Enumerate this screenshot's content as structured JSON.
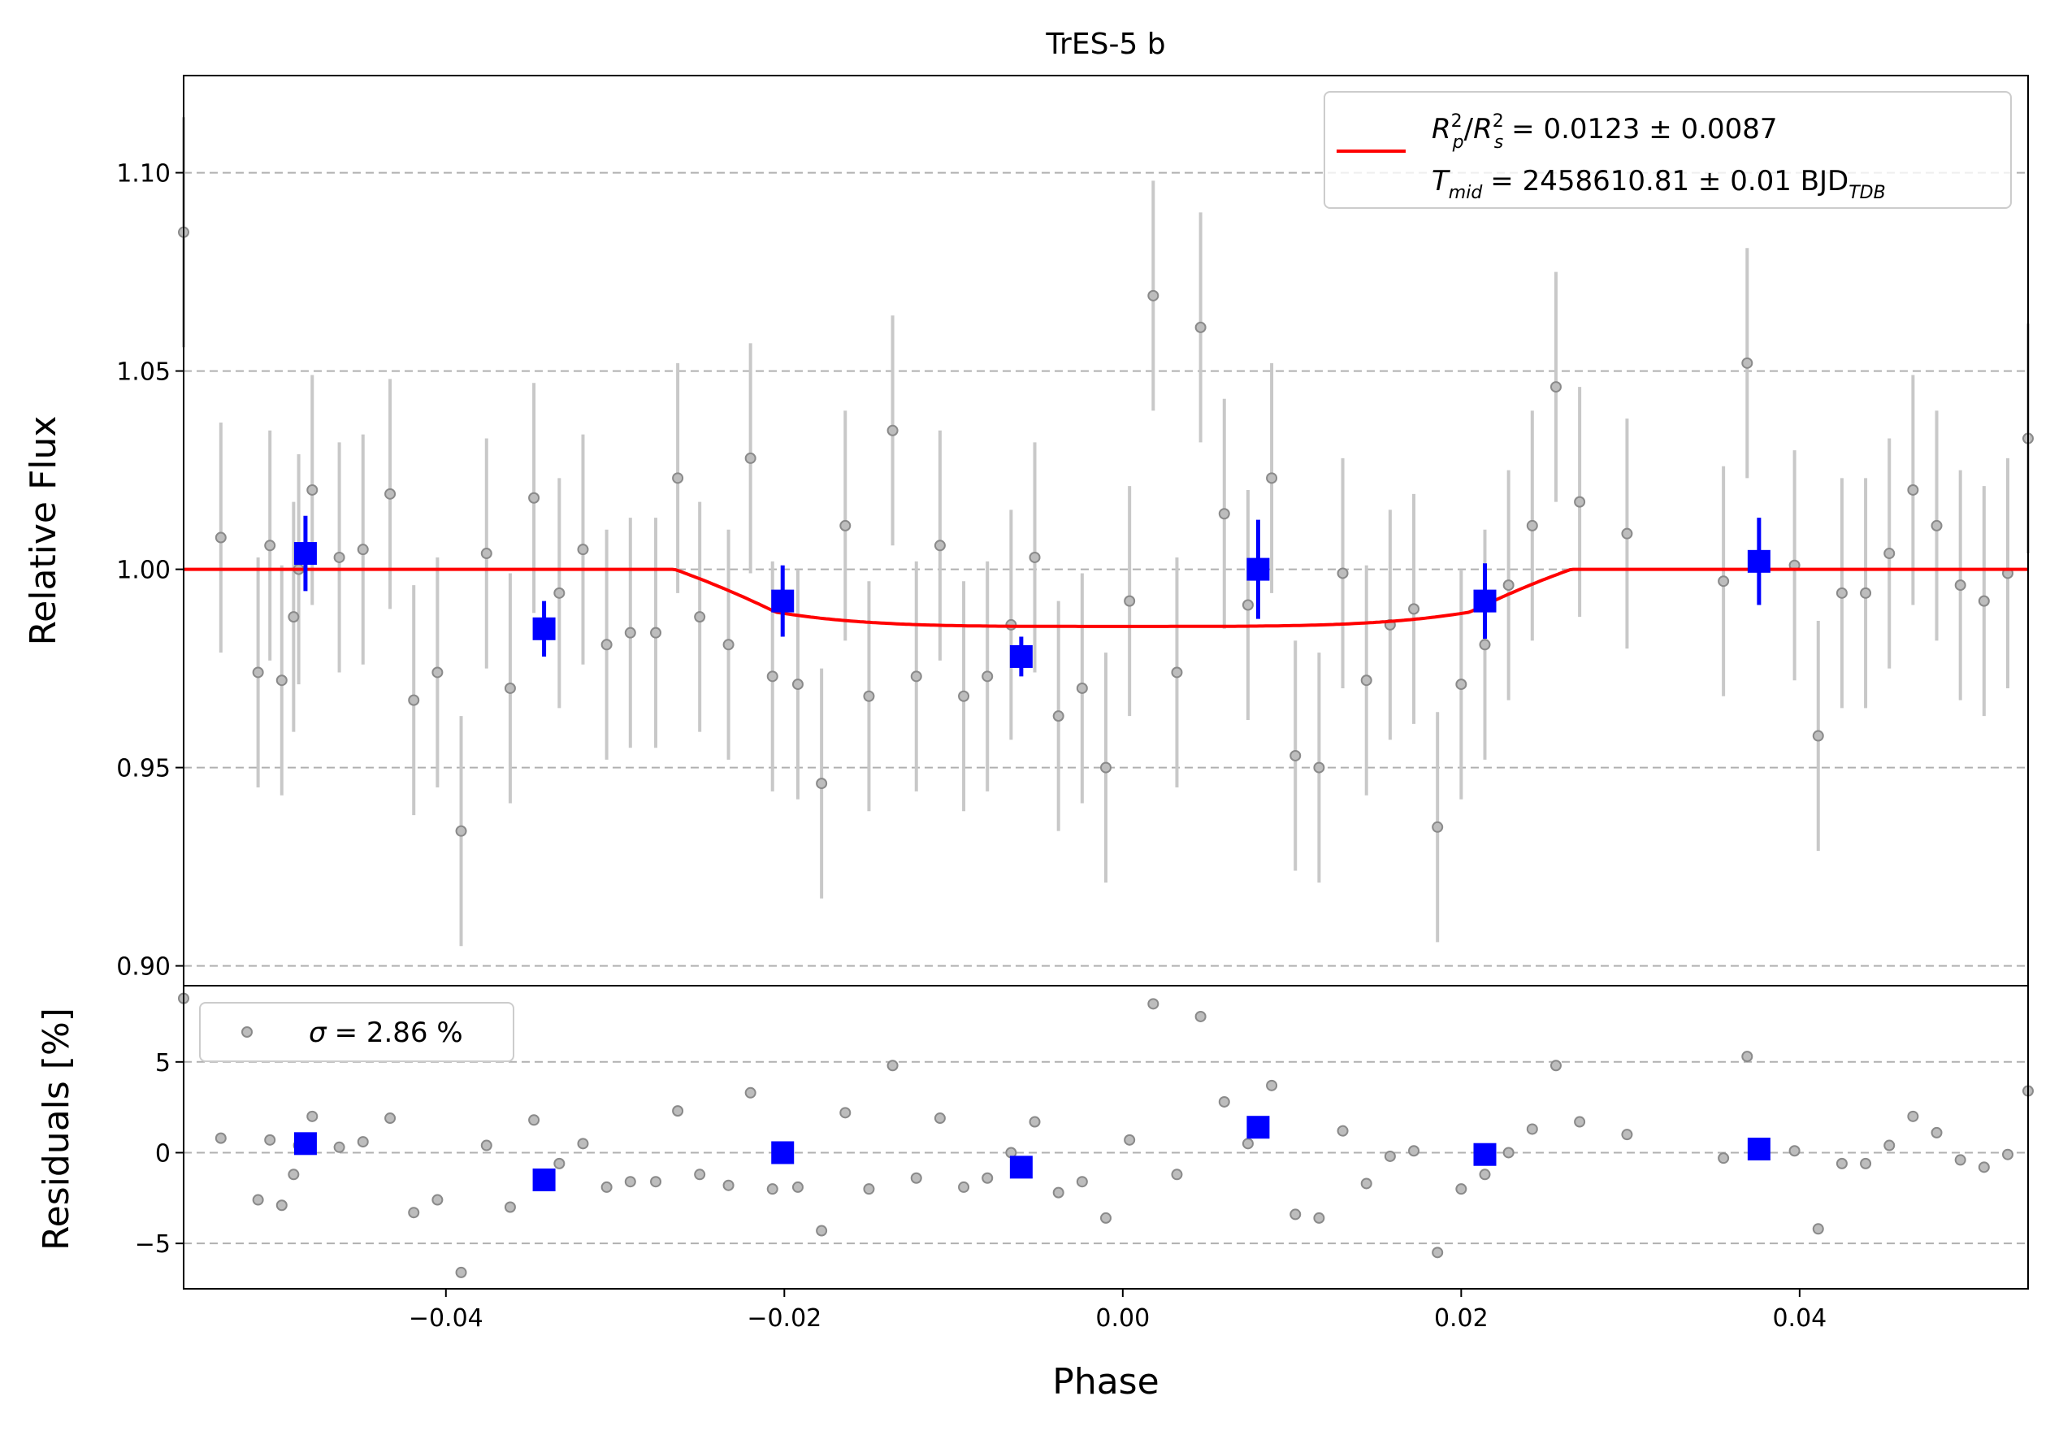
{
  "chart_data": [
    {
      "type": "scatter",
      "title": "TrES-5 b",
      "xlabel": "",
      "ylabel": "Relative Flux",
      "xlim": [
        -0.0555,
        0.0535
      ],
      "ylim": [
        0.895,
        1.1245
      ],
      "yticks": [
        0.9,
        0.95,
        1.0,
        1.05,
        1.1
      ],
      "ytick_labels": [
        "0.90",
        "0.95",
        "1.00",
        "1.05",
        "1.10"
      ],
      "grid": "horizontal dashed",
      "legend": {
        "placement": "top-right",
        "line1_prefix": "= 0.0123 ± 0.0087",
        "line2_value": "= 2458610.81 ± 0.01 BJD",
        "line2_sub": "TDB",
        "symbols": {
          "R": "R",
          "p": "p",
          "s": "s",
          "sq": "2",
          "T": "T",
          "mid": "mid"
        }
      },
      "colors": {
        "data": "#808080",
        "errorbar": "#c8c8c8",
        "binned": "#0000ff",
        "model": "#ff0000"
      },
      "transit_model": {
        "baseline": 1.0,
        "depth_at_center": 0.9856,
        "t_ingress_start": -0.0265,
        "t_ingress_end": -0.0205,
        "t_egress_start": 0.0205,
        "t_egress_end": 0.0265
      },
      "data_points": {
        "x": [
          -0.0555,
          -0.0533,
          -0.0511,
          -0.0504,
          -0.0497,
          -0.049,
          -0.0487,
          -0.0479,
          -0.0463,
          -0.0449,
          -0.0433,
          -0.0419,
          -0.0405,
          -0.0391,
          -0.0376,
          -0.0362,
          -0.0348,
          -0.0333,
          -0.0319,
          -0.0305,
          -0.0291,
          -0.0276,
          -0.0263,
          -0.025,
          -0.0233,
          -0.022,
          -0.0207,
          -0.0192,
          -0.0178,
          -0.0164,
          -0.015,
          -0.0136,
          -0.0122,
          -0.0108,
          -0.0094,
          -0.008,
          -0.0066,
          -0.0052,
          -0.0038,
          -0.0024,
          -0.001,
          0.0004,
          0.0018,
          0.0032,
          0.0046,
          0.006,
          0.0074,
          0.0088,
          0.0102,
          0.0116,
          0.013,
          0.0144,
          0.0158,
          0.0172,
          0.0186,
          0.02,
          0.0214,
          0.0228,
          0.0242,
          0.0256,
          0.027,
          0.0298,
          0.0355,
          0.0369,
          0.0397,
          0.0411,
          0.0425,
          0.0439,
          0.0453,
          0.0467,
          0.0481,
          0.0495,
          0.0509,
          0.0523,
          0.0535
        ],
        "y": [
          1.085,
          1.008,
          0.974,
          1.006,
          0.972,
          0.988,
          1.0,
          1.02,
          1.003,
          1.005,
          1.019,
          0.967,
          0.974,
          0.934,
          1.004,
          0.97,
          1.018,
          0.994,
          1.005,
          0.981,
          0.984,
          0.984,
          1.023,
          0.988,
          0.981,
          1.028,
          0.973,
          0.971,
          0.946,
          1.011,
          0.968,
          1.035,
          0.973,
          1.006,
          0.968,
          0.973,
          0.986,
          1.003,
          0.963,
          0.97,
          0.95,
          0.992,
          1.069,
          0.974,
          1.061,
          1.014,
          0.991,
          1.023,
          0.953,
          0.95,
          0.999,
          0.972,
          0.986,
          0.99,
          0.935,
          0.971,
          0.981,
          0.996,
          1.011,
          1.046,
          1.017,
          1.009,
          0.997,
          1.052,
          1.001,
          0.958,
          0.994,
          0.994,
          1.004,
          1.02,
          1.011,
          0.996,
          0.992,
          0.999,
          1.033
        ],
        "yerr": 0.029
      },
      "binned_points": {
        "x": [
          -0.0483,
          -0.0342,
          -0.0201,
          -0.006,
          0.008,
          0.0214,
          0.0376
        ],
        "y": [
          1.004,
          0.985,
          0.992,
          0.978,
          1.0,
          0.992,
          1.002
        ],
        "yerr": [
          0.0095,
          0.007,
          0.009,
          0.005,
          0.0125,
          0.0095,
          0.011
        ]
      }
    },
    {
      "type": "scatter",
      "title": "",
      "xlabel": "Phase",
      "ylabel": "Residuals [%]",
      "xlim": [
        -0.0555,
        0.0535
      ],
      "ylim": [
        -7.5,
        9.2
      ],
      "yticks": [
        -5,
        0,
        5
      ],
      "ytick_labels": [
        "−5",
        "0",
        "5"
      ],
      "xticks": [
        -0.04,
        -0.02,
        0.0,
        0.02,
        0.04
      ],
      "xtick_labels": [
        "−0.04",
        "−0.02",
        "0.00",
        "0.02",
        "0.04"
      ],
      "grid": "horizontal dashed",
      "legend": {
        "placement": "top-left",
        "sigma_symbol": "σ",
        "sigma_text": "= 2.86 %"
      },
      "residual_points": {
        "x": [
          -0.0555,
          -0.0533,
          -0.0511,
          -0.0504,
          -0.0497,
          -0.049,
          -0.0487,
          -0.0479,
          -0.0463,
          -0.0449,
          -0.0433,
          -0.0419,
          -0.0405,
          -0.0391,
          -0.0376,
          -0.0362,
          -0.0348,
          -0.0333,
          -0.0319,
          -0.0305,
          -0.0291,
          -0.0276,
          -0.0263,
          -0.025,
          -0.0233,
          -0.022,
          -0.0207,
          -0.0192,
          -0.0178,
          -0.0164,
          -0.015,
          -0.0136,
          -0.0122,
          -0.0108,
          -0.0094,
          -0.008,
          -0.0066,
          -0.0052,
          -0.0038,
          -0.0024,
          -0.001,
          0.0004,
          0.0018,
          0.0032,
          0.0046,
          0.006,
          0.0074,
          0.0088,
          0.0102,
          0.0116,
          0.013,
          0.0144,
          0.0158,
          0.0172,
          0.0186,
          0.02,
          0.0214,
          0.0228,
          0.0242,
          0.0256,
          0.027,
          0.0298,
          0.0355,
          0.0369,
          0.0397,
          0.0411,
          0.0425,
          0.0439,
          0.0453,
          0.0467,
          0.0481,
          0.0495,
          0.0509,
          0.0523,
          0.0535
        ],
        "y": [
          8.5,
          0.8,
          -2.6,
          0.7,
          -2.9,
          -1.2,
          0.4,
          2.0,
          0.3,
          0.6,
          1.9,
          -3.3,
          -2.6,
          -6.6,
          0.4,
          -3.0,
          1.8,
          -0.6,
          0.5,
          -1.9,
          -1.6,
          -1.6,
          2.3,
          -1.2,
          -1.8,
          3.3,
          -2.0,
          -1.9,
          -4.3,
          2.2,
          -2.0,
          4.8,
          -1.4,
          1.9,
          -1.9,
          -1.4,
          0.0,
          1.7,
          -2.2,
          -1.6,
          -3.6,
          0.7,
          8.2,
          -1.2,
          7.5,
          2.8,
          0.5,
          3.7,
          -3.4,
          -3.6,
          1.2,
          -1.7,
          -0.2,
          0.1,
          -5.5,
          -2.0,
          -1.2,
          0.0,
          1.3,
          4.8,
          1.7,
          1.0,
          -0.3,
          5.3,
          0.1,
          -4.2,
          -0.6,
          -0.6,
          0.4,
          2.0,
          1.1,
          -0.4,
          -0.8,
          -0.1,
          3.4
        ]
      },
      "binned_residuals": {
        "x": [
          -0.0483,
          -0.0342,
          -0.0201,
          -0.006,
          0.008,
          0.0214,
          0.0376
        ],
        "y": [
          0.5,
          -1.5,
          0.0,
          -0.8,
          1.4,
          -0.1,
          0.2
        ]
      }
    }
  ]
}
